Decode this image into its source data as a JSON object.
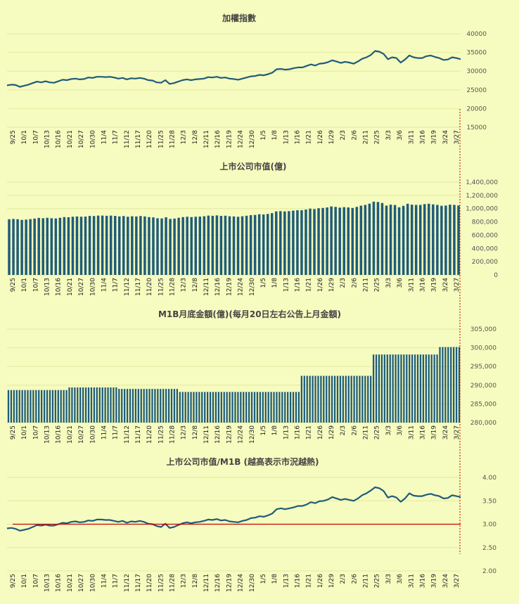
{
  "palette": {
    "background": "#f6fbbf",
    "series": "#1f5c7a",
    "reference": "#cc0000",
    "marker": "#cc0000"
  },
  "x_labels": [
    "9/25",
    "10/1",
    "10/7",
    "10/13",
    "10/16",
    "10/21",
    "10/27",
    "10/30",
    "11/4",
    "11/7",
    "11/12",
    "11/17",
    "11/20",
    "11/25",
    "11/28",
    "12/3",
    "12/8",
    "12/11",
    "12/16",
    "12/19",
    "12/24",
    "12/30",
    "1/5",
    "1/8",
    "1/13",
    "1/16",
    "1/21",
    "1/26",
    "1/29",
    "2/3",
    "2/6",
    "2/11",
    "2/25",
    "3/3",
    "3/6",
    "3/11",
    "3/16",
    "3/19",
    "3/24",
    "3/27"
  ],
  "chart_data": [
    {
      "type": "line",
      "title": "加權指數",
      "ylim": [
        15000,
        40000
      ],
      "y_ticks": [
        "15000",
        "20000",
        "25000",
        "30000",
        "35000",
        "40000"
      ],
      "grid_ticks": [
        15000,
        20000,
        25000,
        30000,
        35000,
        40000
      ],
      "y": [
        26200,
        26400,
        26300,
        25800,
        26100,
        26400,
        26800,
        27200,
        27000,
        27300,
        27000,
        26900,
        27300,
        27700,
        27600,
        27900,
        28000,
        27800,
        27900,
        28300,
        28200,
        28500,
        28500,
        28400,
        28500,
        28300,
        28000,
        28200,
        27800,
        28100,
        28000,
        28200,
        28000,
        27600,
        27500,
        27000,
        26900,
        27600,
        26600,
        26800,
        27200,
        27600,
        27800,
        27600,
        27800,
        27900,
        28000,
        28400,
        28300,
        28500,
        28200,
        28300,
        28000,
        27900,
        27700,
        28000,
        28300,
        28600,
        28700,
        29000,
        28900,
        29200,
        29600,
        30500,
        30600,
        30400,
        30500,
        30800,
        31000,
        31000,
        31400,
        31800,
        31500,
        32000,
        32100,
        32400,
        32900,
        32600,
        32200,
        32500,
        32300,
        32000,
        32600,
        33300,
        33700,
        34300,
        35400,
        35200,
        34600,
        33200,
        33700,
        33500,
        32300,
        33100,
        34200,
        33700,
        33500,
        33500,
        34000,
        34200,
        33800,
        33500,
        33000,
        33100,
        33700,
        33500,
        33200
      ]
    },
    {
      "type": "bar",
      "title": "上市公司市值(億)",
      "ylim": [
        0,
        1400000
      ],
      "y_ticks": [
        "0",
        "200,000",
        "400,000",
        "600,000",
        "800,000",
        "1,000,000",
        "1,200,000",
        "1,400,000"
      ],
      "grid_ticks": [
        0,
        200000,
        400000,
        600000,
        800000,
        1000000,
        1200000,
        1400000
      ],
      "values": [
        840000,
        845000,
        840000,
        830000,
        835000,
        842000,
        850000,
        860000,
        855000,
        862000,
        855000,
        852000,
        862000,
        872000,
        870000,
        878000,
        882000,
        878000,
        880000,
        890000,
        888000,
        895000,
        895000,
        892000,
        895000,
        890000,
        882000,
        888000,
        878000,
        885000,
        882000,
        888000,
        882000,
        872000,
        868000,
        855000,
        852000,
        870000,
        845000,
        850000,
        862000,
        872000,
        878000,
        872000,
        878000,
        880000,
        885000,
        895000,
        892000,
        898000,
        890000,
        893000,
        885000,
        882000,
        877000,
        885000,
        893000,
        902000,
        905000,
        915000,
        912000,
        920000,
        932000,
        958000,
        962000,
        958000,
        962000,
        970000,
        976000,
        976000,
        986000,
        1000000,
        993000,
        1006000,
        1010000,
        1018000,
        1033000,
        1026000,
        1015000,
        1022000,
        1018000,
        1010000,
        1026000,
        1045000,
        1056000,
        1075000,
        1105000,
        1100000,
        1085000,
        1046000,
        1060000,
        1055000,
        1020000,
        1042000,
        1073000,
        1060000,
        1056000,
        1056000,
        1068000,
        1074000,
        1064000,
        1056000,
        1043000,
        1046000,
        1060000,
        1056000,
        1048000
      ]
    },
    {
      "type": "bar",
      "title": "M1B月底金額(億)(每月20日左右公告上月金額)",
      "ylim": [
        280000,
        305000
      ],
      "y_ticks": [
        "280,000",
        "285,000",
        "290,000",
        "295,000",
        "300,000",
        "305,000"
      ],
      "grid_ticks": [
        280000,
        285000,
        290000,
        295000,
        300000,
        305000
      ],
      "values": [
        288700,
        288700,
        288700,
        288700,
        288700,
        288700,
        288700,
        288700,
        288700,
        288700,
        288700,
        288700,
        288700,
        288700,
        288700,
        288700,
        288700,
        288700,
        288700,
        288700,
        288700,
        288700,
        289400,
        289400,
        289400,
        289400,
        289400,
        289400,
        289400,
        289400,
        289400,
        289400,
        289400,
        289400,
        289400,
        289400,
        289400,
        289400,
        289400,
        289400,
        289000,
        289000,
        289000,
        289000,
        289000,
        289000,
        289000,
        289000,
        289000,
        289000,
        289000,
        289000,
        289000,
        289000,
        289000,
        289000,
        289000,
        289000,
        289000,
        289000,
        289000,
        289000,
        288200,
        288200,
        288200,
        288200,
        288200,
        288200,
        288200,
        288200,
        288200,
        288200,
        288200,
        288200,
        288200,
        288200,
        288200,
        288200,
        288200,
        288200,
        288200,
        288200,
        288200,
        288200,
        288200,
        288200,
        288200,
        288200,
        288200,
        288200,
        288200,
        288200,
        288200,
        288200,
        288200,
        288200,
        288200,
        288200,
        288200,
        288200,
        288200,
        288200,
        288200,
        288200,
        288200,
        288200,
        292500,
        292500,
        292500,
        292500,
        292500,
        292500,
        292500,
        292500,
        292500,
        292500,
        292500,
        292500,
        292500,
        292500,
        292500,
        292500,
        292500,
        292500,
        292500,
        292500,
        292500,
        292500,
        292500,
        292500,
        292500,
        292500,
        298200,
        298200,
        298200,
        298200,
        298200,
        298200,
        298200,
        298200,
        298200,
        298200,
        298200,
        298200,
        298200,
        298200,
        298200,
        298200,
        298200,
        298200,
        298200,
        298200,
        298200,
        298200,
        298200,
        298200,
        300200,
        300200,
        300200,
        300200,
        300200,
        300200,
        300200,
        300200
      ]
    },
    {
      "type": "line",
      "title": "上市公司市值/M1B (越高表示市況越熱)",
      "ylim": [
        2.0,
        4.0
      ],
      "y_ticks": [
        "2.00",
        "2.50",
        "3.00",
        "3.50",
        "4.00"
      ],
      "grid_ticks": [
        2.0,
        2.5,
        3.0,
        3.5,
        4.0
      ],
      "reference_y": 3.0,
      "y": [
        2.91,
        2.92,
        2.9,
        2.86,
        2.88,
        2.9,
        2.94,
        2.98,
        2.97,
        2.99,
        2.97,
        2.97,
        3.0,
        3.03,
        3.02,
        3.05,
        3.06,
        3.04,
        3.05,
        3.08,
        3.07,
        3.1,
        3.1,
        3.09,
        3.09,
        3.07,
        3.05,
        3.07,
        3.03,
        3.06,
        3.05,
        3.07,
        3.05,
        3.01,
        3.0,
        2.96,
        2.94,
        3.01,
        2.92,
        2.94,
        2.98,
        3.02,
        3.04,
        3.02,
        3.04,
        3.05,
        3.07,
        3.1,
        3.09,
        3.11,
        3.08,
        3.09,
        3.06,
        3.05,
        3.04,
        3.07,
        3.09,
        3.13,
        3.14,
        3.17,
        3.16,
        3.19,
        3.23,
        3.32,
        3.34,
        3.32,
        3.34,
        3.36,
        3.39,
        3.39,
        3.42,
        3.47,
        3.45,
        3.49,
        3.5,
        3.53,
        3.58,
        3.55,
        3.52,
        3.54,
        3.52,
        3.5,
        3.55,
        3.62,
        3.66,
        3.72,
        3.79,
        3.77,
        3.71,
        3.57,
        3.6,
        3.57,
        3.48,
        3.55,
        3.66,
        3.61,
        3.6,
        3.6,
        3.63,
        3.65,
        3.62,
        3.6,
        3.55,
        3.56,
        3.62,
        3.6,
        3.58
      ]
    }
  ]
}
